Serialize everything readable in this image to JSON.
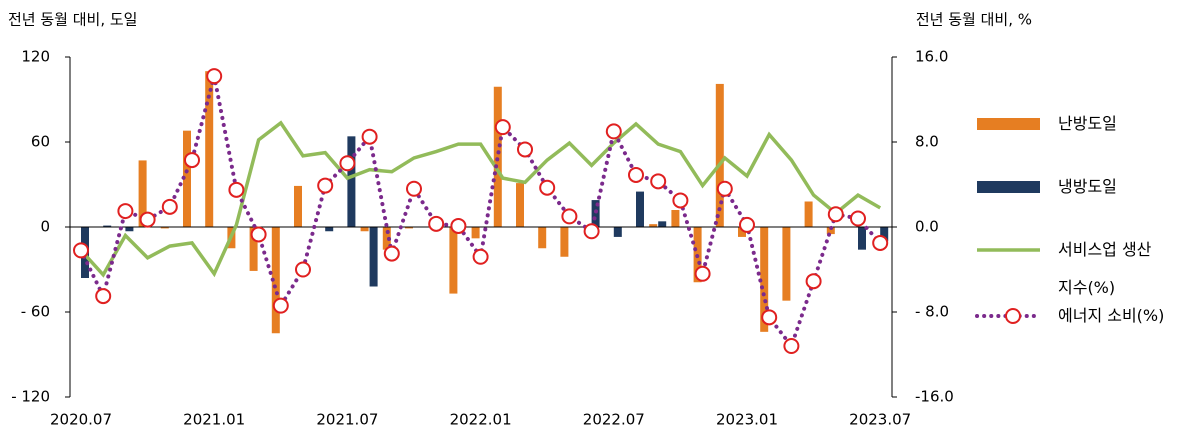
{
  "chart_data": {
    "type": "bar_line",
    "y_axis_label": "전년 동월 대비, 도일",
    "y2_axis_label": "전년 동월 대비, %",
    "categories": [
      "2020.07",
      null,
      null,
      null,
      null,
      null,
      "2021.01",
      null,
      null,
      null,
      null,
      null,
      "2021.07",
      null,
      null,
      null,
      null,
      null,
      "2022.01",
      null,
      null,
      null,
      null,
      null,
      "2022.07",
      null,
      null,
      null,
      null,
      null,
      "2023.01",
      null,
      null,
      null,
      null,
      null,
      "2023.07"
    ],
    "series": [
      {
        "name": "난방도일",
        "type": "bar",
        "color": "#e67e22",
        "values": [
          0,
          0,
          0,
          47,
          -1,
          68,
          110,
          -15,
          -31,
          -75,
          29,
          0,
          0,
          -3,
          -16,
          -1,
          0,
          -47,
          -8,
          99,
          31,
          -15,
          -21,
          0,
          0,
          0,
          2,
          12,
          -39,
          101,
          -7,
          -74,
          -52,
          18,
          -5,
          0,
          0
        ]
      },
      {
        "name": "냉방도일",
        "type": "bar",
        "color": "#1f3a5f",
        "values": [
          -36,
          1,
          -3,
          0,
          0,
          0,
          0,
          0,
          0,
          0,
          0,
          -3,
          64,
          -42,
          0,
          0,
          0,
          0,
          0,
          0,
          0,
          0,
          0,
          19,
          -7,
          25,
          4,
          0,
          0,
          0,
          0,
          0,
          0,
          0,
          0,
          -16,
          -10
        ]
      },
      {
        "name": "서비스업 생산지수(%)",
        "type": "line",
        "axis": "y2",
        "color": "#92bb5a",
        "values": [
          -2.2,
          -4.5,
          -0.8,
          -2.9,
          -1.8,
          -1.5,
          -4.4,
          0.2,
          8.2,
          9.8,
          6.7,
          7.0,
          4.6,
          5.4,
          5.2,
          6.5,
          7.1,
          7.8,
          7.8,
          4.6,
          4.2,
          6.3,
          7.9,
          5.8,
          7.9,
          9.7,
          7.8,
          7.1,
          3.9,
          6.5,
          4.8,
          8.7,
          6.3,
          3.0,
          1.3,
          3.0,
          1.8
        ]
      },
      {
        "name": "에너지 소비(%)",
        "type": "dotted_line",
        "axis": "y2",
        "color": "#7b2a8c",
        "marker_color": "#e02020",
        "values": [
          -2.2,
          -6.5,
          1.5,
          0.7,
          1.9,
          6.3,
          14.2,
          3.5,
          -0.7,
          -7.4,
          -4.0,
          3.9,
          6.0,
          8.5,
          -2.5,
          3.6,
          0.3,
          0.1,
          -2.8,
          9.4,
          7.3,
          3.7,
          1.0,
          -0.4,
          9.0,
          4.9,
          4.3,
          2.5,
          -4.4,
          3.6,
          0.2,
          -8.5,
          -11.2,
          -5.1,
          1.2,
          0.8,
          -1.5
        ]
      }
    ],
    "ylim": [
      -120,
      120
    ],
    "yticks": [
      {
        "value": -120,
        "label": "- 120"
      },
      {
        "value": -60,
        "label": "- 60"
      },
      0,
      60,
      120
    ],
    "y2lim": [
      -16,
      16
    ],
    "y2ticks": [
      {
        "value": -16,
        "label": "-16.0"
      },
      {
        "value": -8,
        "label": "- 8.0"
      },
      {
        "value": 0,
        "label": "0.0"
      },
      {
        "value": 8,
        "label": "8.0"
      },
      {
        "value": 16,
        "label": "16.0"
      }
    ],
    "legend": "right"
  }
}
